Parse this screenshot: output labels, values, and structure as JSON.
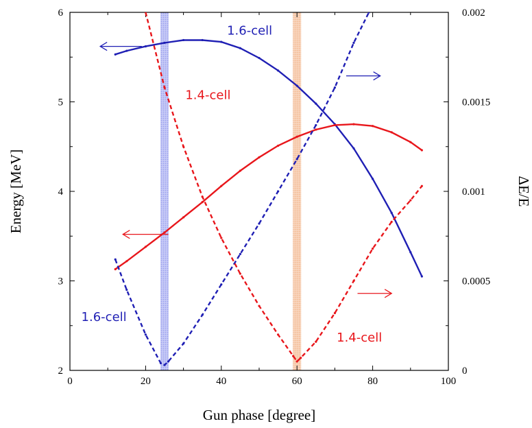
{
  "chart_data": {
    "type": "line",
    "xlabel": "Gun phase [degree]",
    "ylabel_left": "Energy [MeV]",
    "ylabel_right": "ΔE/E",
    "xlim": [
      0,
      100
    ],
    "ylim_left": [
      2,
      6
    ],
    "ylim_right": [
      0,
      0.002
    ],
    "x_ticks": [
      "0",
      "20",
      "40",
      "60",
      "80",
      "100"
    ],
    "y_left_ticks": [
      "2",
      "3",
      "4",
      "5",
      "6"
    ],
    "y_right_ticks": [
      "0",
      "0.0005",
      "0.001",
      "0.0015",
      "0.002"
    ],
    "grid": false,
    "colors": {
      "blue": "#1f1fb4",
      "red": "#e8161b",
      "blue_band": "#9aa0ee",
      "orange_band": "#f2b48a"
    },
    "bands": [
      {
        "x": 25,
        "color": "#9aa0ee"
      },
      {
        "x": 60,
        "color": "#f2b48a"
      }
    ],
    "series": [
      {
        "name": "1.6-cell",
        "quantity": "energy",
        "axis": "left",
        "style": "solid",
        "color": "#1f1fb4",
        "x": [
          12,
          15,
          20,
          25,
          30,
          35,
          40,
          45,
          50,
          55,
          60,
          65,
          70,
          75,
          80,
          85,
          90,
          93
        ],
        "y": [
          5.53,
          5.57,
          5.62,
          5.66,
          5.69,
          5.69,
          5.67,
          5.6,
          5.49,
          5.35,
          5.18,
          4.98,
          4.75,
          4.48,
          4.14,
          3.76,
          3.32,
          3.05
        ]
      },
      {
        "name": "1.4-cell",
        "quantity": "energy",
        "axis": "left",
        "style": "solid",
        "color": "#e8161b",
        "x": [
          12,
          15,
          20,
          25,
          30,
          35,
          40,
          45,
          50,
          55,
          60,
          65,
          70,
          75,
          80,
          85,
          90,
          93
        ],
        "y": [
          3.13,
          3.22,
          3.38,
          3.54,
          3.71,
          3.88,
          4.06,
          4.23,
          4.38,
          4.51,
          4.61,
          4.69,
          4.74,
          4.75,
          4.73,
          4.66,
          4.55,
          4.46
        ]
      },
      {
        "name": "1.6-cell",
        "quantity": "dE/E",
        "axis": "right",
        "style": "dashed",
        "color": "#1f1fb4",
        "x": [
          12,
          15,
          20,
          24,
          25,
          26,
          30,
          35,
          40,
          45,
          50,
          55,
          60,
          65,
          70,
          75,
          79
        ],
        "y": [
          0.00062,
          0.00045,
          0.0002,
          4e-05,
          3e-05,
          5e-05,
          0.00015,
          0.00031,
          0.00048,
          0.00065,
          0.00082,
          0.001,
          0.00118,
          0.00137,
          0.00158,
          0.00183,
          0.002
        ]
      },
      {
        "name": "1.4-cell",
        "quantity": "dE/E",
        "axis": "right",
        "style": "dashed",
        "color": "#e8161b",
        "x": [
          20,
          25,
          30,
          35,
          40,
          45,
          50,
          55,
          59,
          60,
          61,
          65,
          70,
          75,
          80,
          85,
          90,
          93
        ],
        "y": [
          0.002,
          0.00158,
          0.00125,
          0.00097,
          0.00074,
          0.00054,
          0.00036,
          0.0002,
          8e-05,
          5e-05,
          7e-05,
          0.00016,
          0.00032,
          0.0005,
          0.00068,
          0.00083,
          0.00095,
          0.00103
        ]
      }
    ],
    "annotations": [
      {
        "text": "1.6-cell",
        "color": "#1f1fb4",
        "x": 41.5,
        "y": 5.75,
        "axis": "left"
      },
      {
        "text": "1.4-cell",
        "color": "#e8161b",
        "x": 30.5,
        "y": 5.03,
        "axis": "left"
      },
      {
        "text": "1.6-cell",
        "color": "#1f1fb4",
        "x": 3,
        "y": 2.55,
        "axis": "left"
      },
      {
        "text": "1.4-cell",
        "color": "#e8161b",
        "x": 70.5,
        "y": 2.32,
        "axis": "left"
      }
    ],
    "arrows": [
      {
        "color": "#1f1fb4",
        "direction": "left",
        "x_from": 19,
        "x_to": 8,
        "y": 5.62
      },
      {
        "color": "#1f1fb4",
        "direction": "right",
        "x_from": 73,
        "x_to": 82,
        "y": 5.29
      },
      {
        "color": "#e8161b",
        "direction": "left",
        "x_from": 26,
        "x_to": 14,
        "y": 3.52
      },
      {
        "color": "#e8161b",
        "direction": "right",
        "x_from": 76,
        "x_to": 85,
        "y": 2.86
      }
    ]
  }
}
